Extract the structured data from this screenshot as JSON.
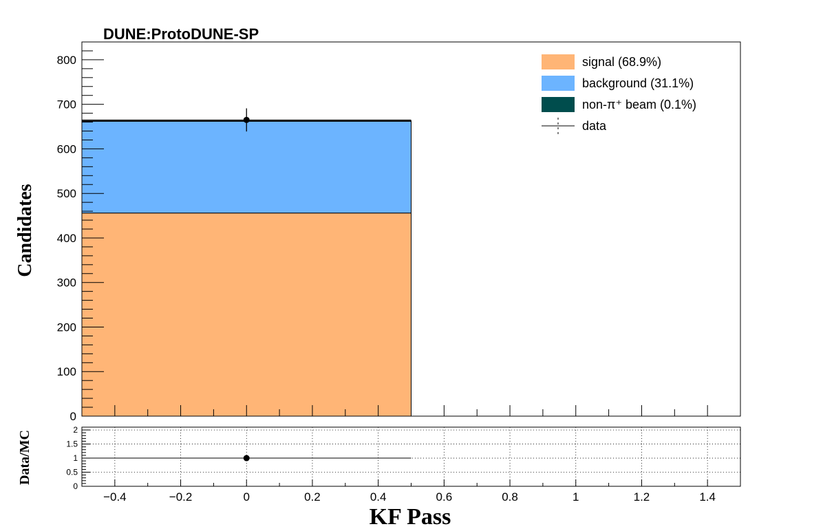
{
  "chart_data": [
    {
      "type": "bar",
      "stacked": true,
      "title": "DUNE:ProtoDUNE-SP",
      "xlabel": "KF Pass",
      "ylabel": "Candidates",
      "xlim": [
        -0.5,
        1.5
      ],
      "ylim": [
        0,
        840
      ],
      "y_ticks": [
        "0",
        "100",
        "200",
        "300",
        "400",
        "500",
        "600",
        "700",
        "800"
      ],
      "x_ticks": [
        "−0.4",
        "−0.2",
        "0",
        "0.2",
        "0.4",
        "0.6",
        "0.8",
        "1",
        "1.2",
        "1.4"
      ],
      "bins": [
        {
          "x_low": -0.5,
          "x_high": 0.5
        }
      ],
      "series": [
        {
          "name": "signal (68.9%)",
          "color": "#ffb576",
          "values": [
            456
          ]
        },
        {
          "name": "background (31.1%)",
          "color": "#6cb4ff",
          "values": [
            206
          ]
        },
        {
          "name": "non-π⁺ beam (0.1%)",
          "color": "#004d4d",
          "values": [
            1
          ]
        }
      ],
      "data_points": {
        "name": "data",
        "x": [
          0
        ],
        "y": [
          665
        ],
        "yerr": [
          26
        ]
      },
      "legend": {
        "placement": "top-right"
      },
      "grid": false
    },
    {
      "type": "scatter",
      "ylabel": "Data/MC",
      "xlim": [
        -0.5,
        1.5
      ],
      "ylim": [
        0,
        2.1
      ],
      "y_ticks": [
        "0",
        "0.5",
        "1",
        "1.5",
        "2"
      ],
      "grid": true,
      "points": [
        {
          "x": 0,
          "y": 1,
          "xerr": 0.5,
          "yerr": 0.04
        }
      ]
    }
  ]
}
